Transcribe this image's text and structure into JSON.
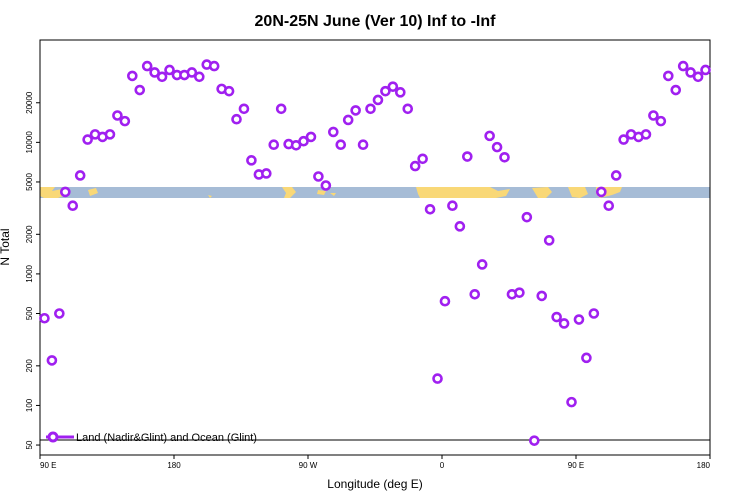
{
  "chart_data": {
    "type": "scatter",
    "title": "20N-25N June (Ver 10)   Inf to -Inf",
    "xlabel": "Longitude (deg E)",
    "ylabel": "N Total",
    "x_ticks": [
      {
        "value": 90,
        "label": "90 E"
      },
      {
        "value": 180,
        "label": "180"
      },
      {
        "value": 270,
        "label": "90 W"
      },
      {
        "value": 360,
        "label": "0"
      },
      {
        "value": 450,
        "label": "90 E"
      },
      {
        "value": 540,
        "label": "180"
      }
    ],
    "y_ticks": [
      50,
      100,
      200,
      500,
      1000,
      2000,
      5000,
      10000,
      20000
    ],
    "xlim": [
      90,
      540
    ],
    "ylim": [
      42,
      60000
    ],
    "y_scale": "log",
    "grid": false,
    "legend_position": "bottom-left",
    "colors": {
      "marker": "#a020f0",
      "ocean": "#a6bcd6",
      "land": "#f9d877",
      "axes": "#000000"
    },
    "series": [
      {
        "name": "Land (Nadir&Glint) and Ocean (Glint)",
        "points": [
          {
            "x": 93,
            "y": 460
          },
          {
            "x": 98,
            "y": 220
          },
          {
            "x": 103,
            "y": 500
          },
          {
            "x": 107,
            "y": 4200
          },
          {
            "x": 112,
            "y": 3300
          },
          {
            "x": 117,
            "y": 5600
          },
          {
            "x": 122,
            "y": 10500
          },
          {
            "x": 127,
            "y": 11500
          },
          {
            "x": 132,
            "y": 11000
          },
          {
            "x": 137,
            "y": 11500
          },
          {
            "x": 142,
            "y": 16000
          },
          {
            "x": 147,
            "y": 14500
          },
          {
            "x": 152,
            "y": 32000
          },
          {
            "x": 157,
            "y": 25000
          },
          {
            "x": 162,
            "y": 38000
          },
          {
            "x": 167,
            "y": 34000
          },
          {
            "x": 172,
            "y": 31500
          },
          {
            "x": 177,
            "y": 35500
          },
          {
            "x": 182,
            "y": 32500
          },
          {
            "x": 187,
            "y": 32500
          },
          {
            "x": 192,
            "y": 34000
          },
          {
            "x": 197,
            "y": 31500
          },
          {
            "x": 202,
            "y": 39000
          },
          {
            "x": 207,
            "y": 38000
          },
          {
            "x": 212,
            "y": 25500
          },
          {
            "x": 217,
            "y": 24500
          },
          {
            "x": 222,
            "y": 15000
          },
          {
            "x": 227,
            "y": 18000
          },
          {
            "x": 232,
            "y": 7300
          },
          {
            "x": 237,
            "y": 5700
          },
          {
            "x": 242,
            "y": 5800
          },
          {
            "x": 247,
            "y": 9600
          },
          {
            "x": 252,
            "y": 18000
          },
          {
            "x": 257,
            "y": 9700
          },
          {
            "x": 262,
            "y": 9500
          },
          {
            "x": 267,
            "y": 10200
          },
          {
            "x": 272,
            "y": 11000
          },
          {
            "x": 277,
            "y": 5500
          },
          {
            "x": 282,
            "y": 4700
          },
          {
            "x": 287,
            "y": 12000
          },
          {
            "x": 292,
            "y": 9600
          },
          {
            "x": 297,
            "y": 14800
          },
          {
            "x": 302,
            "y": 17500
          },
          {
            "x": 307,
            "y": 9600
          },
          {
            "x": 312,
            "y": 18000
          },
          {
            "x": 317,
            "y": 21000
          },
          {
            "x": 322,
            "y": 24500
          },
          {
            "x": 327,
            "y": 26500
          },
          {
            "x": 332,
            "y": 24000
          },
          {
            "x": 337,
            "y": 18000
          },
          {
            "x": 342,
            "y": 6600
          },
          {
            "x": 347,
            "y": 7500
          },
          {
            "x": 352,
            "y": 3100
          },
          {
            "x": 357,
            "y": 160
          },
          {
            "x": 362,
            "y": 620
          },
          {
            "x": 367,
            "y": 3300
          },
          {
            "x": 372,
            "y": 2300
          },
          {
            "x": 377,
            "y": 7800
          },
          {
            "x": 382,
            "y": 700
          },
          {
            "x": 387,
            "y": 1180
          },
          {
            "x": 392,
            "y": 11200
          },
          {
            "x": 397,
            "y": 9200
          },
          {
            "x": 402,
            "y": 7700
          },
          {
            "x": 407,
            "y": 700
          },
          {
            "x": 412,
            "y": 720
          },
          {
            "x": 417,
            "y": 2700
          },
          {
            "x": 422,
            "y": 54
          },
          {
            "x": 427,
            "y": 680
          },
          {
            "x": 432,
            "y": 1800
          },
          {
            "x": 437,
            "y": 470
          },
          {
            "x": 442,
            "y": 420
          },
          {
            "x": 447,
            "y": 106
          },
          {
            "x": 452,
            "y": 450
          },
          {
            "x": 457,
            "y": 230
          },
          {
            "x": 462,
            "y": 500
          },
          {
            "x": 467,
            "y": 4200
          },
          {
            "x": 472,
            "y": 3300
          },
          {
            "x": 477,
            "y": 5600
          },
          {
            "x": 482,
            "y": 10500
          },
          {
            "x": 487,
            "y": 11500
          },
          {
            "x": 492,
            "y": 11000
          },
          {
            "x": 497,
            "y": 11500
          },
          {
            "x": 502,
            "y": 16000
          },
          {
            "x": 507,
            "y": 14500
          },
          {
            "x": 512,
            "y": 32000
          },
          {
            "x": 517,
            "y": 25000
          },
          {
            "x": 522,
            "y": 38000
          },
          {
            "x": 527,
            "y": 34000
          },
          {
            "x": 532,
            "y": 31500
          },
          {
            "x": 537,
            "y": 35500
          }
        ]
      }
    ]
  }
}
